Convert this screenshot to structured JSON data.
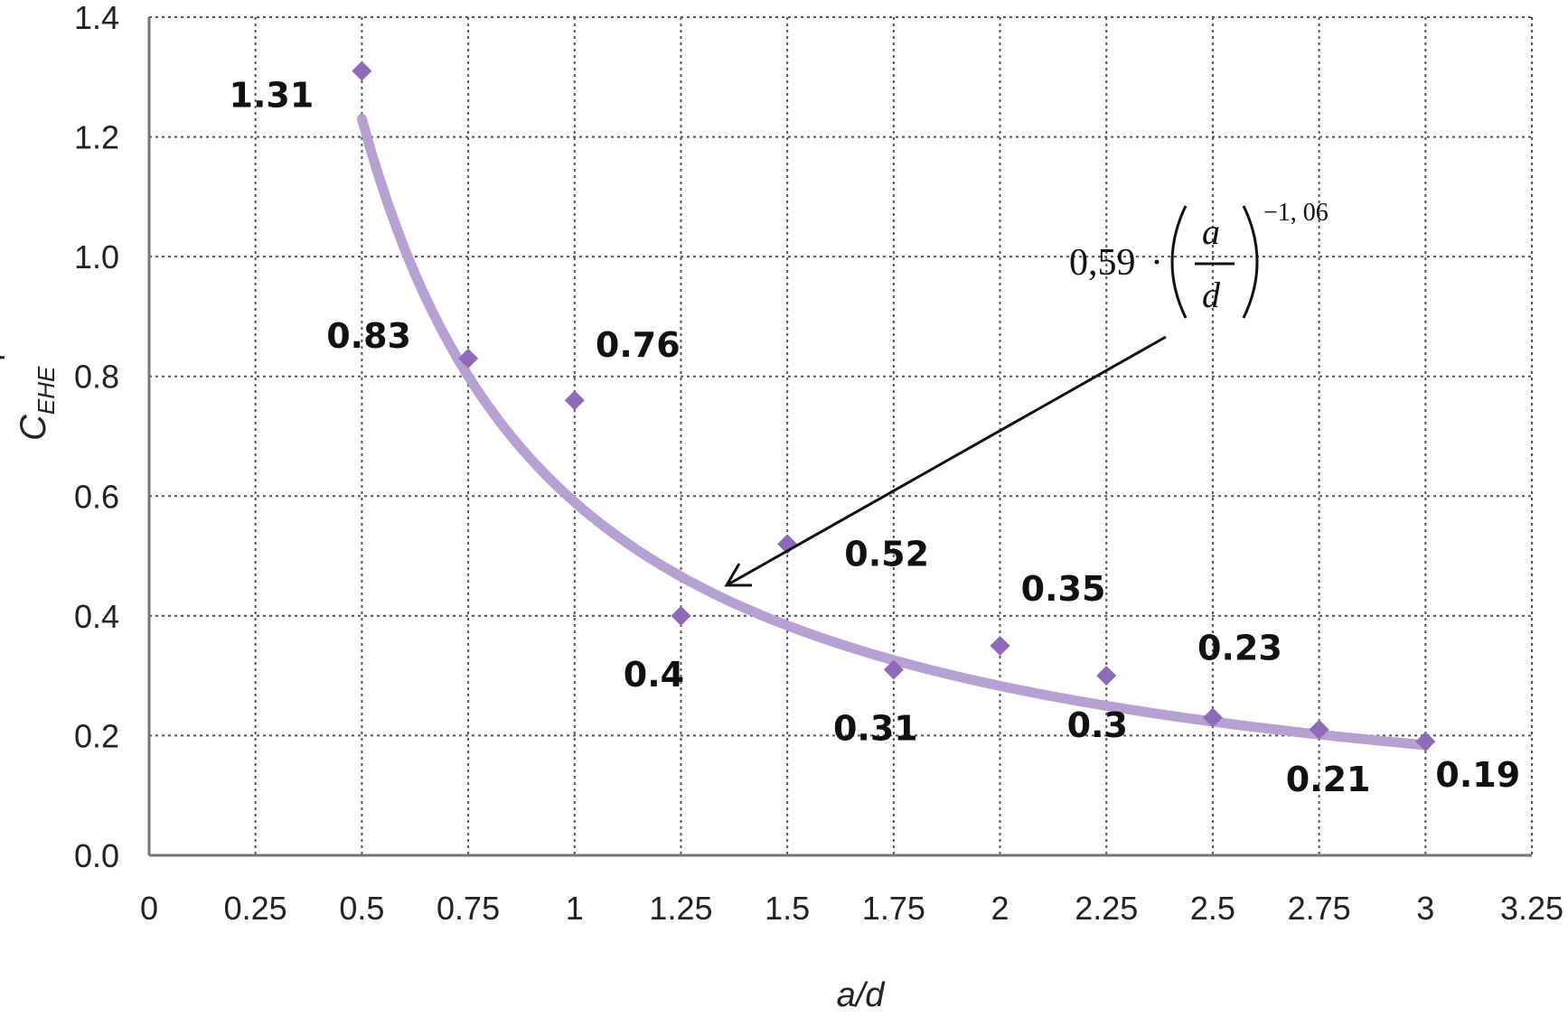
{
  "chart_data": {
    "type": "scatter",
    "title": "",
    "xlabel": "a/d",
    "ylabel": {
      "base": "C",
      "subscript": "EHE",
      "prime": "'"
    },
    "xlim": [
      0,
      3.25
    ],
    "ylim": [
      0,
      1.4
    ],
    "x_ticks": [
      "0",
      "0.25",
      "0.5",
      "0.75",
      "1",
      "1.25",
      "1.5",
      "1.75",
      "2",
      "2.25",
      "2.5",
      "2.75",
      "3",
      "3.25"
    ],
    "y_ticks": [
      "0.0",
      "0.2",
      "0.4",
      "0.6",
      "0.8",
      "1.0",
      "1.2",
      "1.4"
    ],
    "grid": true,
    "series": [
      {
        "points": [
          {
            "x": 0.5,
            "y": 1.31,
            "label": "1.31"
          },
          {
            "x": 0.75,
            "y": 0.83,
            "label": "0.83"
          },
          {
            "x": 1.0,
            "y": 0.76,
            "label": "0.76"
          },
          {
            "x": 1.25,
            "y": 0.4,
            "label": "0.4"
          },
          {
            "x": 1.5,
            "y": 0.52,
            "label": "0.52"
          },
          {
            "x": 1.75,
            "y": 0.31,
            "label": "0.31"
          },
          {
            "x": 2.0,
            "y": 0.35,
            "label": "0.35"
          },
          {
            "x": 2.25,
            "y": 0.3,
            "label": "0.3"
          },
          {
            "x": 2.5,
            "y": 0.23,
            "label": "0.23"
          },
          {
            "x": 2.75,
            "y": 0.21,
            "label": "0.21"
          },
          {
            "x": 3.0,
            "y": 0.19,
            "label": "0.19"
          }
        ],
        "color": "#8e6bb8"
      }
    ],
    "fit": {
      "coefficient": 0.59,
      "exponent": -1.06,
      "x_range": [
        0.5,
        3.0
      ],
      "color": "#b7a0d2",
      "annotation": {
        "coefficient_text": "0,59",
        "dot": "·",
        "numerator": "a",
        "denominator": "d",
        "exponent_text": "−1, 06"
      }
    }
  }
}
